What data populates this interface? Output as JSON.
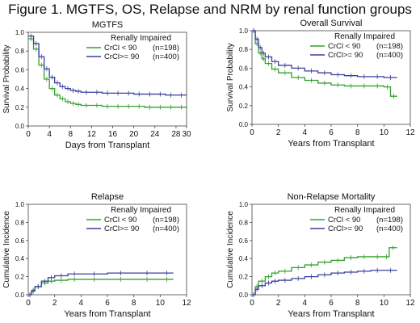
{
  "figure_title": "Figure 1. MGTFS, OS, Relapse and NRM by renal function groups",
  "colors": {
    "green": "#33a02c",
    "blue": "#3b3f9e"
  },
  "chart_data": [
    {
      "type": "line",
      "title": "MGTFS",
      "xlabel": "Days from Transplant",
      "ylabel": "Survival Probability",
      "xlim": [
        0,
        30
      ],
      "ylim": [
        0,
        1.0
      ],
      "xticks": [
        "0",
        "4",
        "8",
        "12",
        "16",
        "20",
        "24",
        "28",
        "30"
      ],
      "xtick_values": [
        0,
        4,
        8,
        12,
        16,
        20,
        24,
        28,
        30
      ],
      "yticks": [
        "0.0",
        "0.2",
        "0.4",
        "0.6",
        "0.8",
        "1.0"
      ],
      "ytick_values": [
        0,
        0.2,
        0.4,
        0.6,
        0.8,
        1.0
      ],
      "legend": {
        "title": "Renally Impaired",
        "placement": "top-right",
        "entries": [
          "CrCl < 90",
          "CrCl>= 90"
        ],
        "counts": [
          "(n=198)",
          "(n=400)"
        ]
      },
      "series": [
        {
          "name": "CrCl < 90",
          "color": "green",
          "x": [
            0,
            1,
            2,
            3,
            4,
            5,
            6,
            7,
            8,
            9,
            10,
            12,
            14,
            16,
            18,
            20,
            22,
            24,
            26,
            28,
            30
          ],
          "y": [
            0.93,
            0.82,
            0.65,
            0.5,
            0.4,
            0.33,
            0.29,
            0.26,
            0.24,
            0.23,
            0.22,
            0.22,
            0.21,
            0.21,
            0.21,
            0.21,
            0.2,
            0.2,
            0.2,
            0.2,
            0.19
          ]
        },
        {
          "name": "CrCl>= 90",
          "color": "blue",
          "x": [
            0,
            1,
            2,
            3,
            4,
            5,
            6,
            7,
            8,
            9,
            10,
            12,
            14,
            16,
            18,
            20,
            22,
            24,
            26,
            28,
            30
          ],
          "y": [
            0.96,
            0.88,
            0.74,
            0.61,
            0.52,
            0.46,
            0.42,
            0.4,
            0.38,
            0.37,
            0.36,
            0.36,
            0.35,
            0.35,
            0.35,
            0.34,
            0.34,
            0.34,
            0.33,
            0.33,
            0.33
          ]
        }
      ]
    },
    {
      "type": "line",
      "title": "Overall Survival",
      "xlabel": "Years from Transplant",
      "ylabel": "Survival Probability",
      "xlim": [
        0,
        12
      ],
      "ylim": [
        0,
        1.0
      ],
      "xticks": [
        "0",
        "2",
        "4",
        "6",
        "8",
        "10",
        "12"
      ],
      "xtick_values": [
        0,
        2,
        4,
        6,
        8,
        10,
        12
      ],
      "yticks": [
        "0.0",
        "0.2",
        "0.4",
        "0.6",
        "0.8",
        "1.0"
      ],
      "ytick_values": [
        0,
        0.2,
        0.4,
        0.6,
        0.8,
        1.0
      ],
      "legend": {
        "title": "Renally Impaired",
        "placement": "top-right",
        "entries": [
          "CrCl < 90",
          "CrCl>= 90"
        ],
        "counts": [
          "(n=198)",
          "(n=400)"
        ]
      },
      "series": [
        {
          "name": "CrCl < 90",
          "color": "green",
          "x": [
            0,
            0.25,
            0.5,
            0.75,
            1,
            1.5,
            2,
            3,
            4,
            5,
            6,
            7,
            8,
            9,
            10,
            10.5,
            11
          ],
          "y": [
            1.0,
            0.86,
            0.76,
            0.7,
            0.65,
            0.59,
            0.55,
            0.5,
            0.47,
            0.44,
            0.42,
            0.41,
            0.41,
            0.41,
            0.4,
            0.3,
            0.3
          ]
        },
        {
          "name": "CrCl>= 90",
          "color": "blue",
          "x": [
            0,
            0.25,
            0.5,
            0.75,
            1,
            1.5,
            2,
            3,
            4,
            5,
            6,
            7,
            8,
            9,
            10,
            11
          ],
          "y": [
            1.0,
            0.91,
            0.82,
            0.76,
            0.72,
            0.67,
            0.63,
            0.6,
            0.57,
            0.55,
            0.53,
            0.52,
            0.51,
            0.51,
            0.5,
            0.5
          ]
        }
      ]
    },
    {
      "type": "line",
      "title": "Relapse",
      "xlabel": "Years from Transplant",
      "ylabel": "Cumulative Incidence",
      "xlim": [
        0,
        12
      ],
      "ylim": [
        0,
        1.0
      ],
      "xticks": [
        "0",
        "2",
        "4",
        "6",
        "8",
        "10",
        "12"
      ],
      "xtick_values": [
        0,
        2,
        4,
        6,
        8,
        10,
        12
      ],
      "yticks": [
        "0.0",
        "0.2",
        "0.4",
        "0.6",
        "0.8",
        "1.0"
      ],
      "ytick_values": [
        0,
        0.2,
        0.4,
        0.6,
        0.8,
        1.0
      ],
      "legend": {
        "title": "Renally Impaired",
        "placement": "top-right",
        "entries": [
          "CrCl < 90",
          "CrCl>= 90"
        ],
        "counts": [
          "(n=198)",
          "(n=400)"
        ]
      },
      "series": [
        {
          "name": "CrCl < 90",
          "color": "green",
          "x": [
            0,
            0.25,
            0.5,
            1,
            1.5,
            2,
            3,
            4,
            6,
            8,
            10,
            11
          ],
          "y": [
            0,
            0.05,
            0.09,
            0.13,
            0.15,
            0.16,
            0.17,
            0.17,
            0.17,
            0.17,
            0.17,
            0.17
          ]
        },
        {
          "name": "CrCl>= 90",
          "color": "blue",
          "x": [
            0,
            0.25,
            0.5,
            1,
            1.5,
            2,
            3,
            4,
            6,
            8,
            10,
            11
          ],
          "y": [
            0,
            0.04,
            0.09,
            0.15,
            0.19,
            0.21,
            0.23,
            0.23,
            0.24,
            0.24,
            0.24,
            0.24
          ]
        }
      ]
    },
    {
      "type": "line",
      "title": "Non-Relapse Mortality",
      "xlabel": "Years from Transplant",
      "ylabel": "Cumulative Incidence",
      "xlim": [
        0,
        12
      ],
      "ylim": [
        0,
        1.0
      ],
      "xticks": [
        "0",
        "2",
        "4",
        "6",
        "8",
        "10",
        "12"
      ],
      "xtick_values": [
        0,
        2,
        4,
        6,
        8,
        10,
        12
      ],
      "yticks": [
        "0.0",
        "0.2",
        "0.4",
        "0.6",
        "0.8",
        "1.0"
      ],
      "ytick_values": [
        0,
        0.2,
        0.4,
        0.6,
        0.8,
        1.0
      ],
      "legend": {
        "title": "Renally Impaired",
        "placement": "top-right",
        "entries": [
          "CrCl < 90",
          "CrCl>= 90"
        ],
        "counts": [
          "(n=198)",
          "(n=400)"
        ]
      },
      "series": [
        {
          "name": "CrCl < 90",
          "color": "green",
          "x": [
            0,
            0.25,
            0.5,
            1,
            1.5,
            2,
            3,
            4,
            5,
            6,
            7,
            8,
            9,
            10,
            10.4,
            11
          ],
          "y": [
            0,
            0.09,
            0.15,
            0.2,
            0.24,
            0.26,
            0.3,
            0.33,
            0.36,
            0.38,
            0.41,
            0.42,
            0.42,
            0.42,
            0.52,
            0.52
          ]
        },
        {
          "name": "CrCl>= 90",
          "color": "blue",
          "x": [
            0,
            0.25,
            0.5,
            1,
            1.5,
            2,
            3,
            4,
            5,
            6,
            7,
            8,
            9,
            10,
            11
          ],
          "y": [
            0,
            0.06,
            0.1,
            0.13,
            0.15,
            0.16,
            0.18,
            0.2,
            0.22,
            0.24,
            0.25,
            0.26,
            0.27,
            0.27,
            0.27
          ]
        }
      ]
    }
  ]
}
